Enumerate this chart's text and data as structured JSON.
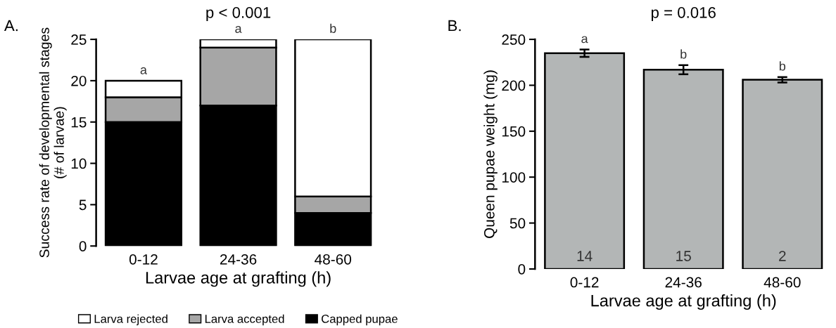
{
  "chart_data": [
    {
      "type": "bar",
      "title": "p < 0.001",
      "xlabel": "Larvae age at grafting (h)",
      "ylabel": "Success rate of developmental stages\n(# of larvae)",
      "categories": [
        "0-12",
        "24-36",
        "48-60"
      ],
      "stacked": true,
      "series": [
        {
          "name": "Capped pupae",
          "color": "#000000",
          "values": [
            15,
            17,
            4
          ]
        },
        {
          "name": "Larva accepted",
          "color": "#a6a6a6",
          "values": [
            3,
            7,
            2
          ]
        },
        {
          "name": "Larva rejected",
          "color": "#ffffff",
          "values": [
            2,
            1,
            19
          ]
        }
      ],
      "ylim": [
        0,
        25
      ],
      "yticks": [
        0,
        5,
        10,
        15,
        20,
        25
      ],
      "grid": false,
      "legend": "bottom",
      "annotations": [
        "A.",
        {
          "text": "a",
          "x": "0-12",
          "y": 20
        },
        {
          "text": "a",
          "x": "24-36",
          "y": 25
        },
        {
          "text": "b",
          "x": "48-60",
          "y": 25
        }
      ]
    },
    {
      "type": "bar",
      "title": "p = 0.016",
      "xlabel": "Larvae age at grafting (h)",
      "ylabel": "Queen pupae weight (mg)",
      "categories": [
        "0-12",
        "24-36",
        "48-60"
      ],
      "series": [
        {
          "color": "#b3b6b6",
          "values": [
            235,
            217,
            206
          ],
          "errors": [
            4,
            5,
            3
          ]
        }
      ],
      "ylim": [
        0,
        250
      ],
      "yticks": [
        0,
        50,
        100,
        150,
        200,
        250
      ],
      "grid": false,
      "legend": false,
      "annotations": [
        "B.",
        {
          "text": "a",
          "x": "0-12",
          "y": 239
        },
        {
          "text": "b",
          "x": "24-36",
          "y": 222
        },
        {
          "text": "b",
          "x": "48-60",
          "y": 209
        },
        {
          "text": "14",
          "x": "0-12",
          "y": 0
        },
        {
          "text": "15",
          "x": "24-36",
          "y": 0
        },
        {
          "text": "2",
          "x": "48-60",
          "y": 0
        }
      ]
    }
  ]
}
